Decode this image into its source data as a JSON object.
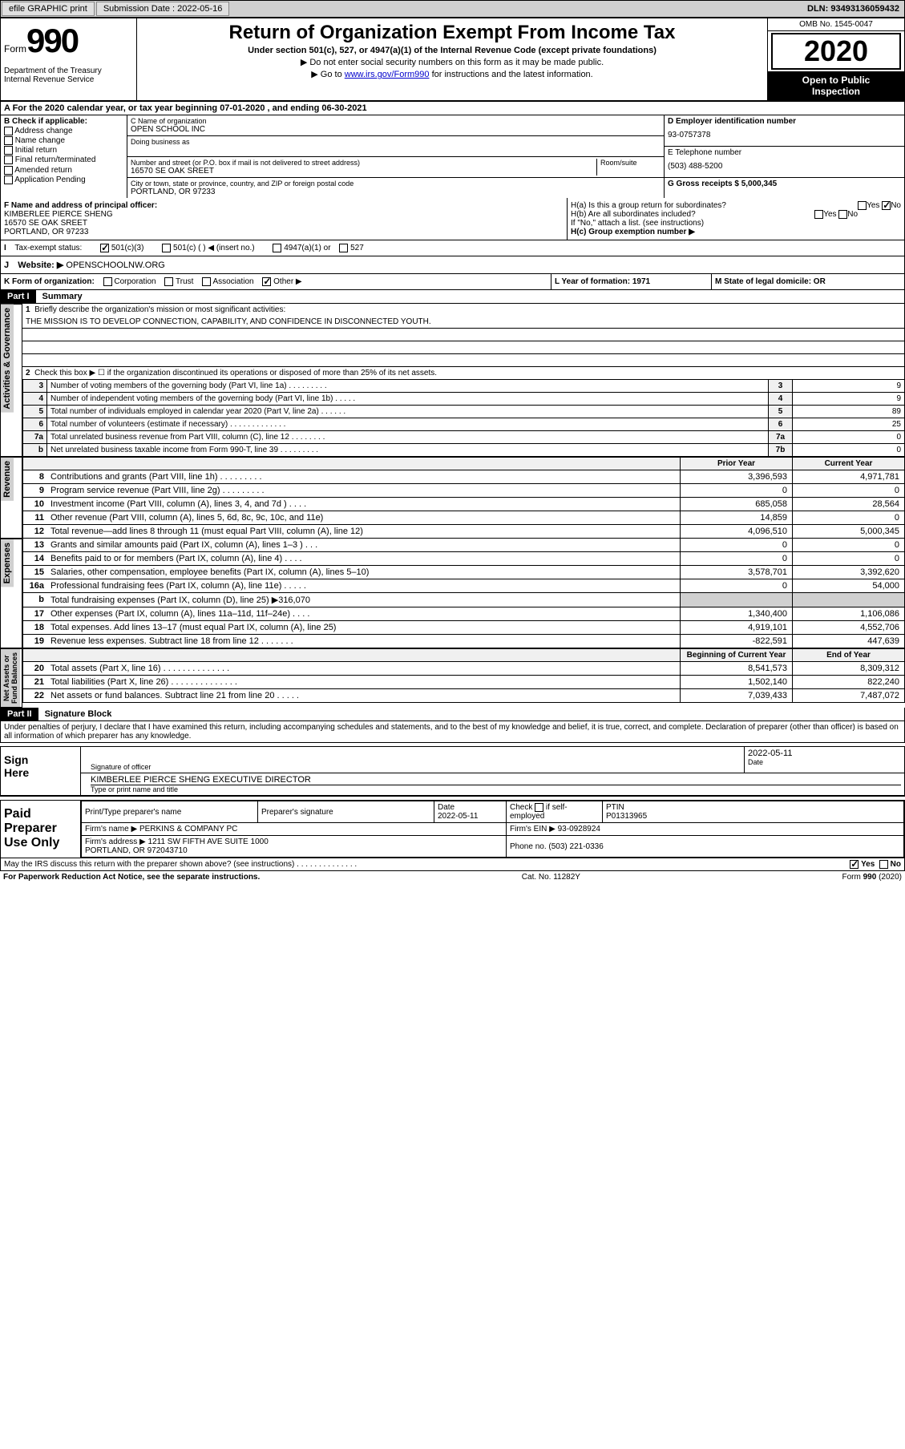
{
  "topbar": {
    "efile": "efile GRAPHIC print",
    "submission_label": "Submission Date : 2022-05-16",
    "dln": "DLN: 93493136059432"
  },
  "header": {
    "form_word": "Form",
    "form_num": "990",
    "dept": "Department of the Treasury\nInternal Revenue Service",
    "title": "Return of Organization Exempt From Income Tax",
    "subtitle": "Under section 501(c), 527, or 4947(a)(1) of the Internal Revenue Code (except private foundations)",
    "note1": "▶ Do not enter social security numbers on this form as it may be made public.",
    "note2_pre": "▶ Go to ",
    "note2_link": "www.irs.gov/Form990",
    "note2_post": " for instructions and the latest information.",
    "omb": "OMB No. 1545-0047",
    "year": "2020",
    "open_public": "Open to Public\nInspection"
  },
  "row_a": "A For the 2020 calendar year, or tax year beginning 07-01-2020    , and ending 06-30-2021",
  "col_b": {
    "header": "B Check if applicable:",
    "items": [
      "Address change",
      "Name change",
      "Initial return",
      "Final return/terminated",
      "Amended return",
      "Application Pending"
    ]
  },
  "org": {
    "c_label": "C Name of organization",
    "name": "OPEN SCHOOL INC",
    "dba_label": "Doing business as",
    "addr_label": "Number and street (or P.O. box if mail is not delivered to street address)",
    "room_label": "Room/suite",
    "addr": "16570 SE OAK SREET",
    "city_label": "City or town, state or province, country, and ZIP or foreign postal code",
    "city": "PORTLAND, OR  97233"
  },
  "right": {
    "d_label": "D Employer identification number",
    "ein": "93-0757378",
    "e_label": "E Telephone number",
    "phone": "(503) 488-5200",
    "g_label": "G Gross receipts $ 5,000,345"
  },
  "fh": {
    "f_label": "F Name and address of principal officer:",
    "officer": "KIMBERLEE PIERCE SHENG\n16570 SE OAK SREET\nPORTLAND, OR  97233",
    "ha": "H(a)  Is this a group return for subordinates?",
    "hb": "H(b)  Are all subordinates included?",
    "hb_note": "If \"No,\" attach a list. (see instructions)",
    "hc": "H(c)  Group exemption number ▶",
    "yes": "Yes",
    "no": "No"
  },
  "tax_status": {
    "i": "I",
    "label": "Tax-exempt status:",
    "opt1": "501(c)(3)",
    "opt2": "501(c) (   ) ◀ (insert no.)",
    "opt3": "4947(a)(1) or",
    "opt4": "527"
  },
  "website": {
    "j": "J",
    "label": "Website: ▶",
    "value": "OPENSCHOOLNW.ORG"
  },
  "k_row": {
    "k_label": "K Form of organization:",
    "opts": [
      "Corporation",
      "Trust",
      "Association",
      "Other ▶"
    ],
    "l": "L Year of formation: 1971",
    "m": "M State of legal domicile: OR"
  },
  "part1": {
    "hdr": "Part I",
    "title": "Summary",
    "q1": "Briefly describe the organization's mission or most significant activities:",
    "mission": "THE MISSION IS TO DEVELOP CONNECTION, CAPABILITY, AND CONFIDENCE IN DISCONNECTED YOUTH.",
    "q2": "Check this box ▶ ☐  if the organization discontinued its operations or disposed of more than 25% of its net assets."
  },
  "governance": {
    "label": "Activities & Governance",
    "rows": [
      {
        "n": "3",
        "d": "Number of voting members of the governing body (Part VI, line 1a)  .    .    .    .    .    .    .    .    .",
        "idx": "3",
        "v": "9"
      },
      {
        "n": "4",
        "d": "Number of independent voting members of the governing body (Part VI, line 1b)  .    .    .    .    .",
        "idx": "4",
        "v": "9"
      },
      {
        "n": "5",
        "d": "Total number of individuals employed in calendar year 2020 (Part V, line 2a)  .    .    .    .    .    .",
        "idx": "5",
        "v": "89"
      },
      {
        "n": "6",
        "d": "Total number of volunteers (estimate if necessary)  .    .    .    .    .    .    .    .    .    .    .    .    .",
        "idx": "6",
        "v": "25"
      },
      {
        "n": "7a",
        "d": "Total unrelated business revenue from Part VIII, column (C), line 12  .    .    .    .    .    .    .    .",
        "idx": "7a",
        "v": "0"
      },
      {
        "n": "b",
        "d": "Net unrelated business taxable income from Form 990-T, line 39  .    .    .    .    .    .    .    .    .",
        "idx": "7b",
        "v": "0"
      }
    ]
  },
  "revenue": {
    "label": "Revenue",
    "hdr1": "Prior Year",
    "hdr2": "Current Year",
    "rows": [
      {
        "n": "8",
        "d": "Contributions and grants (Part VIII, line 1h)  .    .    .    .    .    .    .    .    .",
        "c1": "3,396,593",
        "c2": "4,971,781"
      },
      {
        "n": "9",
        "d": "Program service revenue (Part VIII, line 2g)  .    .    .    .    .    .    .    .    .",
        "c1": "0",
        "c2": "0"
      },
      {
        "n": "10",
        "d": "Investment income (Part VIII, column (A), lines 3, 4, and 7d )  .    .    .    .",
        "c1": "685,058",
        "c2": "28,564"
      },
      {
        "n": "11",
        "d": "Other revenue (Part VIII, column (A), lines 5, 6d, 8c, 9c, 10c, and 11e)",
        "c1": "14,859",
        "c2": "0"
      },
      {
        "n": "12",
        "d": "Total revenue—add lines 8 through 11 (must equal Part VIII, column (A), line 12)",
        "c1": "4,096,510",
        "c2": "5,000,345"
      }
    ]
  },
  "expenses": {
    "label": "Expenses",
    "rows": [
      {
        "n": "13",
        "d": "Grants and similar amounts paid (Part IX, column (A), lines 1–3 )  .    .    .",
        "c1": "0",
        "c2": "0"
      },
      {
        "n": "14",
        "d": "Benefits paid to or for members (Part IX, column (A), line 4)  .    .    .    .",
        "c1": "0",
        "c2": "0"
      },
      {
        "n": "15",
        "d": "Salaries, other compensation, employee benefits (Part IX, column (A), lines 5–10)",
        "c1": "3,578,701",
        "c2": "3,392,620"
      },
      {
        "n": "16a",
        "d": "Professional fundraising fees (Part IX, column (A), line 11e)  .    .    .    .    .",
        "c1": "0",
        "c2": "54,000"
      },
      {
        "n": "b",
        "d": "Total fundraising expenses (Part IX, column (D), line 25) ▶316,070",
        "c1": "",
        "c2": ""
      },
      {
        "n": "17",
        "d": "Other expenses (Part IX, column (A), lines 11a–11d, 11f–24e)  .    .    .    .",
        "c1": "1,340,400",
        "c2": "1,106,086"
      },
      {
        "n": "18",
        "d": "Total expenses. Add lines 13–17 (must equal Part IX, column (A), line 25)",
        "c1": "4,919,101",
        "c2": "4,552,706"
      },
      {
        "n": "19",
        "d": "Revenue less expenses. Subtract line 18 from line 12  .    .    .    .    .    .    .",
        "c1": "-822,591",
        "c2": "447,639"
      }
    ]
  },
  "netassets": {
    "label": "Net Assets or\nFund Balances",
    "hdr1": "Beginning of Current Year",
    "hdr2": "End of Year",
    "rows": [
      {
        "n": "20",
        "d": "Total assets (Part X, line 16)  .    .    .    .    .    .    .    .    .    .    .    .    .    .",
        "c1": "8,541,573",
        "c2": "8,309,312"
      },
      {
        "n": "21",
        "d": "Total liabilities (Part X, line 26)  .    .    .    .    .    .    .    .    .    .    .    .    .    .",
        "c1": "1,502,140",
        "c2": "822,240"
      },
      {
        "n": "22",
        "d": "Net assets or fund balances. Subtract line 21 from line 20  .    .    .    .    .",
        "c1": "7,039,433",
        "c2": "7,487,072"
      }
    ]
  },
  "part2": {
    "hdr": "Part II",
    "title": "Signature Block",
    "decl": "Under penalties of perjury, I declare that I have examined this return, including accompanying schedules and statements, and to the best of my knowledge and belief, it is true, correct, and complete. Declaration of preparer (other than officer) is based on all information of which preparer has any knowledge."
  },
  "sign": {
    "left": "Sign\nHere",
    "sig_label": "Signature of officer",
    "date_label": "Date",
    "date": "2022-05-11",
    "name": "KIMBERLEE PIERCE SHENG  EXECUTIVE DIRECTOR",
    "name_label": "Type or print name and title"
  },
  "paid": {
    "left": "Paid\nPreparer\nUse Only",
    "h1": "Print/Type preparer's name",
    "h2": "Preparer's signature",
    "h3": "Date",
    "date": "2022-05-11",
    "h4_pre": "Check",
    "h4_post": "if self-employed",
    "h5": "PTIN",
    "ptin": "P01313965",
    "firm_name_lbl": "Firm's name    ▶",
    "firm_name": "PERKINS & COMPANY PC",
    "firm_ein_lbl": "Firm's EIN ▶",
    "firm_ein": "93-0928924",
    "firm_addr_lbl": "Firm's address ▶",
    "firm_addr": "1211 SW FIFTH AVE SUITE 1000\nPORTLAND, OR  972043710",
    "phone_lbl": "Phone no.",
    "phone": "(503) 221-0336",
    "discuss": "May the IRS discuss this return with the preparer shown above? (see instructions)  .    .    .    .    .    .    .    .    .    .    .    .    .    ."
  },
  "footer": {
    "left": "For Paperwork Reduction Act Notice, see the separate instructions.",
    "mid": "Cat. No. 11282Y",
    "right": "Form 990 (2020)"
  }
}
